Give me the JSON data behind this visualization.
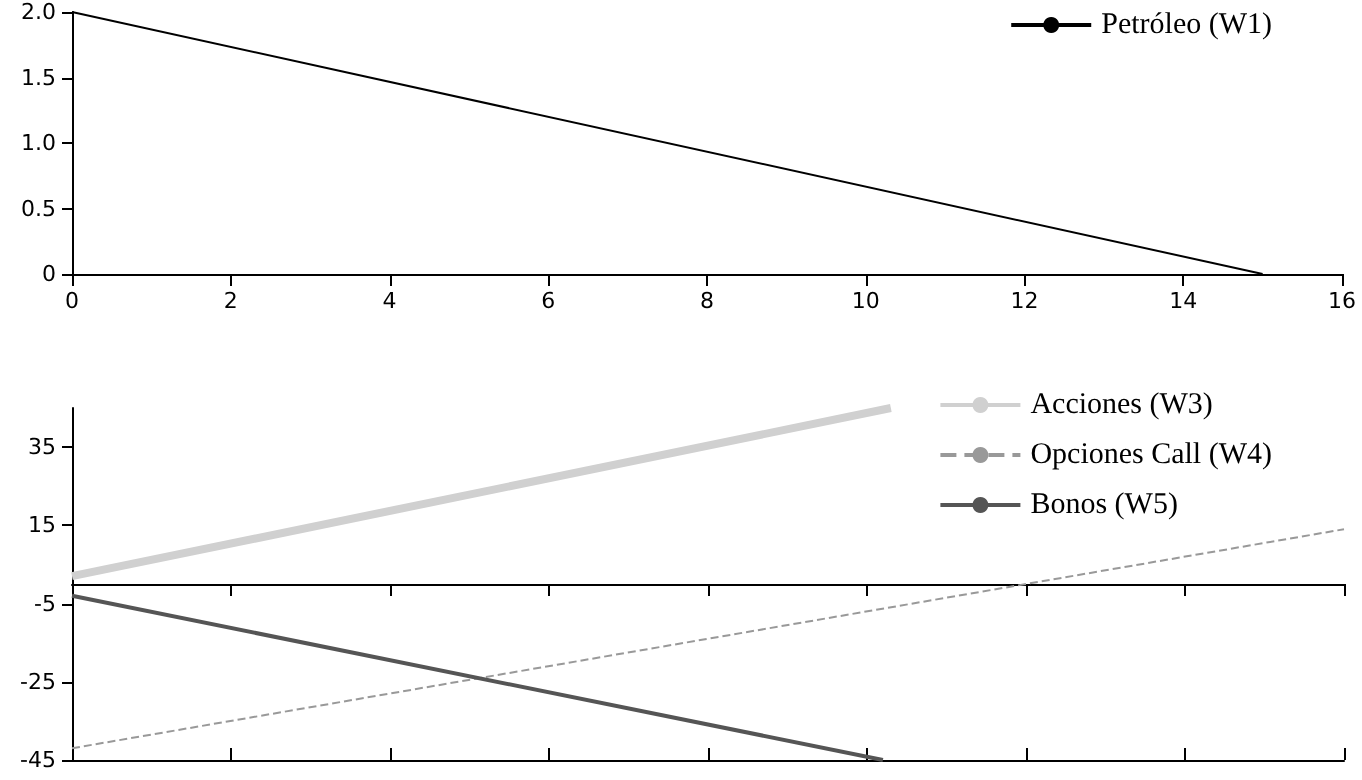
{
  "chart_data": [
    {
      "type": "line",
      "xlim": [
        0,
        16
      ],
      "xticks": [
        0,
        2,
        4,
        6,
        8,
        10,
        12,
        14,
        16
      ],
      "ylim": [
        0,
        2
      ],
      "yticks": [
        0,
        {
          "value": 0.5,
          "label": "0.5"
        },
        {
          "value": 1,
          "label": "1.0"
        },
        {
          "value": 1.5,
          "label": "1.5"
        },
        {
          "value": 2,
          "label": "2.0"
        }
      ],
      "legend": "top right",
      "grid": false,
      "marker": "none",
      "series": [
        {
          "name": "Petróleo (W1)",
          "color": "#000000",
          "line_style": "solid",
          "x": [
            0,
            15
          ],
          "values": [
            2,
            0
          ]
        }
      ]
    },
    {
      "type": "line",
      "xlim": [
        0,
        16
      ],
      "xticks": [
        {
          "value": 0,
          "label": null
        },
        {
          "value": 2,
          "label": null
        },
        {
          "value": 4,
          "label": null
        },
        {
          "value": 6,
          "label": null
        },
        {
          "value": 8,
          "label": null
        },
        {
          "value": 10,
          "label": null
        },
        {
          "value": 12,
          "label": null
        },
        {
          "value": 14,
          "label": null
        },
        {
          "value": 16,
          "label": null
        }
      ],
      "ylim": [
        -45,
        45
      ],
      "yticks": [
        -45,
        -25,
        -5,
        15,
        35
      ],
      "tick_labels": "y",
      "legend": "top right",
      "grid": false,
      "marker": "none",
      "series": [
        {
          "name": "Acciones (W3)",
          "color": "#d0d0d0",
          "line_style": "solid",
          "x": [
            0,
            10.3
          ],
          "values": [
            2,
            45
          ]
        },
        {
          "name": "Opciones Call (W4)",
          "color": "#999999",
          "line_style": "dashed",
          "x": [
            0,
            16
          ],
          "values": [
            -42,
            14
          ]
        },
        {
          "name": "Bonos (W5)",
          "color": "#555555",
          "line_style": "solid",
          "x": [
            0,
            10.2
          ],
          "values": [
            -3,
            -45
          ]
        }
      ]
    }
  ]
}
